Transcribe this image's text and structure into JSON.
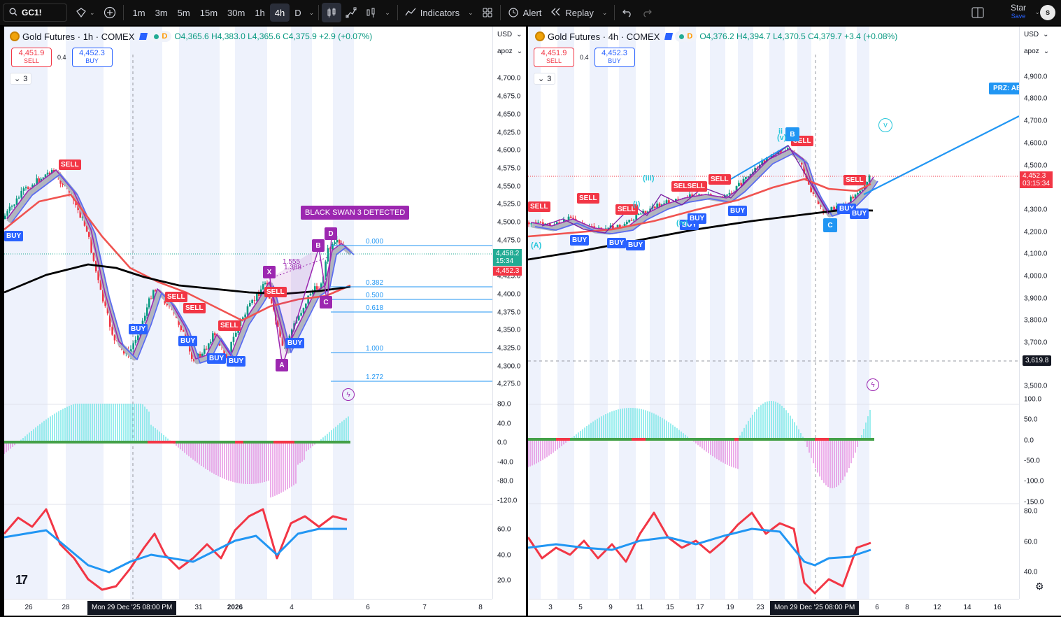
{
  "toolbar": {
    "symbol": "GC1!",
    "timeframes": [
      "1m",
      "3m",
      "5m",
      "15m",
      "30m",
      "1h",
      "4h",
      "D"
    ],
    "active_timeframe": "4h",
    "indicators_label": "Indicators",
    "alert_label": "Alert",
    "replay_label": "Replay",
    "account_name": "Star",
    "save_label": "Save",
    "avatar_letter": "s",
    "icons": [
      "search-icon",
      "compare-icon",
      "add-icon",
      "candles-icon",
      "line-icon",
      "bar-style-icon",
      "indicators-icon",
      "templates-icon",
      "alert-icon",
      "replay-icon",
      "undo-icon",
      "redo-icon",
      "layout-icon",
      "fullscreen-icon"
    ]
  },
  "left_chart": {
    "title": "Gold Futures · 1h · COMEX",
    "ohlc": "O4,365.6  H4,383.0  L4,365.6  C4,375.9  +2.9 (+0.07%)",
    "sell_price": "4,451.9",
    "sell_label": "SELL",
    "spread": "0.4",
    "buy_price": "4,452.3",
    "buy_label": "BUY",
    "indicator_count": "3",
    "currency": "USD",
    "mode": "apoz",
    "price_labels": [
      "4,700.0",
      "4,675.0",
      "4,650.0",
      "4,625.0",
      "4,600.0",
      "4,575.0",
      "4,550.0",
      "4,525.0",
      "4,500.0",
      "4,475.0",
      "4,425.0",
      "4,400.0",
      "4,375.0",
      "4,350.0",
      "4,325.0",
      "4,300.0",
      "4,275.0"
    ],
    "last_price": "4,458.2",
    "last_countdown": "15:34",
    "bid_price": "4,452.3",
    "osc_labels": [
      "80.0",
      "40.0",
      "0.0",
      "-40.0",
      "-80.0",
      "-120.0"
    ],
    "rsi_labels": [
      "60.0",
      "40.0",
      "20.0"
    ],
    "time_labels": [
      "26",
      "28",
      "31",
      "2026",
      "4",
      "6",
      "7",
      "8"
    ],
    "time_cursor": "Mon 29 Dec '25   08:00 PM",
    "pattern_banner": "BLACK SWAN 3 DETECTED",
    "pattern_points": [
      "X",
      "A",
      "B",
      "C",
      "D"
    ],
    "ratios": [
      "1.555",
      "1.388"
    ],
    "fib_levels": [
      "0.000",
      "0.382",
      "0.500",
      "0.618",
      "1.000",
      "1.272"
    ],
    "signals": {
      "sell": "SELL",
      "buy": "BUY"
    }
  },
  "right_chart": {
    "title": "Gold Futures · 4h · COMEX",
    "ohlc": "O4,376.2  H4,394.7  L4,370.5  C4,379.7  +3.4 (+0.08%)",
    "sell_price": "4,451.9",
    "sell_label": "SELL",
    "spread": "0.4",
    "buy_price": "4,452.3",
    "buy_label": "BUY",
    "indicator_count": "3",
    "currency": "USD",
    "mode": "apoz",
    "price_labels": [
      "4,900.0",
      "4,800.0",
      "4,700.0",
      "4,600.0",
      "4,500.0",
      "4,300.0",
      "4,200.0",
      "4,100.0",
      "4,000.0",
      "3,900.0",
      "3,800.0",
      "3,700.0",
      "3,500.0"
    ],
    "last_price": "4,452.3",
    "last_countdown": "03:15:34",
    "crosshair_price": "3,619.8",
    "osc_labels": [
      "100.0",
      "50.0",
      "0.0",
      "-50.0",
      "-100.0",
      "-150.0"
    ],
    "rsi_labels": [
      "80.0",
      "60.0",
      "40.0"
    ],
    "time_labels": [
      "3",
      "5",
      "9",
      "11",
      "15",
      "17",
      "19",
      "23",
      "6",
      "8",
      "12",
      "14",
      "16"
    ],
    "time_cursor": "Mon 29 Dec '25   08:00 PM",
    "prz_label": "PRZ: AB",
    "wave_labels": [
      "(A)",
      "(iii)",
      "(i)",
      "(v)",
      "v",
      "ii",
      "(iv)"
    ],
    "pattern_points": [
      "B",
      "C"
    ],
    "signals": {
      "sell": "SELL",
      "buy": "BUY",
      "sellsell": "SELSELL"
    }
  },
  "colors": {
    "sell": "#f23645",
    "buy": "#2962ff",
    "up": "#089981",
    "pattern": "#9c27b0",
    "fib": "#2196f3",
    "toolbar_bg": "#0f0f0f"
  }
}
